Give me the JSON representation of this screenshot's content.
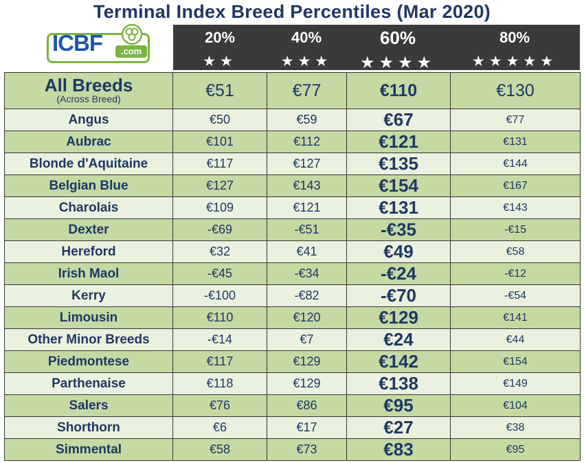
{
  "title": "Terminal Index Breed Percentiles (Mar 2020)",
  "logo": {
    "main": "ICBF",
    "suffix": ".com"
  },
  "columns": [
    {
      "pct": "20%",
      "stars": "★★"
    },
    {
      "pct": "40%",
      "stars": "★★★"
    },
    {
      "pct": "60%",
      "stars": "★★★★"
    },
    {
      "pct": "80%",
      "stars": "★★★★★"
    }
  ],
  "all_breeds": {
    "name": "All Breeds",
    "sub": "(Across Breed)",
    "v": [
      "€51",
      "€77",
      "€110",
      "€130"
    ]
  },
  "rows": [
    {
      "name": "Angus",
      "v": [
        "€50",
        "€59",
        "€67",
        "€77"
      ]
    },
    {
      "name": "Aubrac",
      "v": [
        "€101",
        "€112",
        "€121",
        "€131"
      ]
    },
    {
      "name": "Blonde d'Aquitaine",
      "v": [
        "€117",
        "€127",
        "€135",
        "€144"
      ]
    },
    {
      "name": "Belgian Blue",
      "v": [
        "€127",
        "€143",
        "€154",
        "€167"
      ]
    },
    {
      "name": "Charolais",
      "v": [
        "€109",
        "€121",
        "€131",
        "€143"
      ]
    },
    {
      "name": "Dexter",
      "v": [
        "-€69",
        "-€51",
        "-€35",
        "-€15"
      ]
    },
    {
      "name": "Hereford",
      "v": [
        "€32",
        "€41",
        "€49",
        "€58"
      ]
    },
    {
      "name": "Irish Maol",
      "v": [
        "-€45",
        "-€34",
        "-€24",
        "-€12"
      ]
    },
    {
      "name": "Kerry",
      "v": [
        "-€100",
        "-€82",
        "-€70",
        "-€54"
      ]
    },
    {
      "name": "Limousin",
      "v": [
        "€110",
        "€120",
        "€129",
        "€141"
      ]
    },
    {
      "name": "Other Minor Breeds",
      "v": [
        "-€14",
        "€7",
        "€24",
        "€44"
      ]
    },
    {
      "name": "Piedmontese",
      "v": [
        "€117",
        "€129",
        "€142",
        "€154"
      ]
    },
    {
      "name": "Parthenaise",
      "v": [
        "€118",
        "€129",
        "€138",
        "€149"
      ]
    },
    {
      "name": "Salers",
      "v": [
        "€76",
        "€86",
        "€95",
        "€104"
      ]
    },
    {
      "name": "Shorthorn",
      "v": [
        "€6",
        "€17",
        "€27",
        "€38"
      ]
    },
    {
      "name": "Simmental",
      "v": [
        "€58",
        "€73",
        "€83",
        "€95"
      ]
    }
  ],
  "colors": {
    "title": "#1f3864",
    "header_bg": "#3a3a3a",
    "row_green": "#c5d9a3",
    "row_light": "#ebf1df",
    "logo_green": "#7ab441",
    "logo_blue": "#1f56a8"
  }
}
